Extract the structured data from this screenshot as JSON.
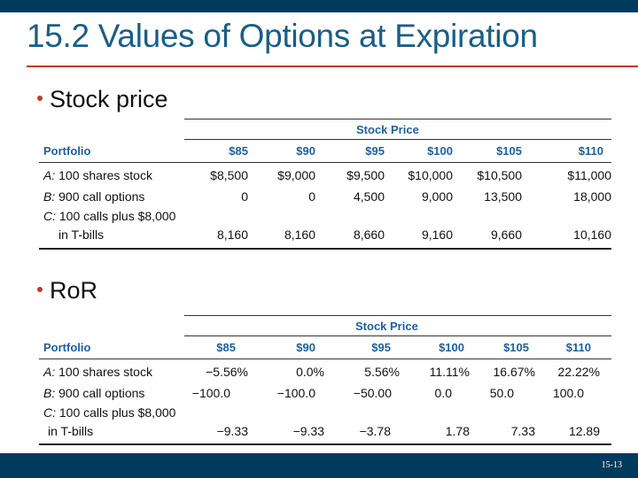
{
  "slide": {
    "title": "15.2 Values of Options at Expiration",
    "page_number": "15-13"
  },
  "sections": [
    {
      "bullet": "Stock price",
      "table": {
        "group_header": "Stock Price",
        "portfolio_header": "Portfolio",
        "prices": [
          "$85",
          "$90",
          "$95",
          "$100",
          "$105",
          "$110"
        ],
        "rows": [
          {
            "label_prefix": "A:",
            "label": "100 shares stock",
            "label2": "",
            "values": [
              "$8,500",
              "$9,000",
              "$9,500",
              "$10,000",
              "$10,500",
              "$11,000"
            ]
          },
          {
            "label_prefix": "B:",
            "label": "900 call options",
            "label2": "",
            "values": [
              "0",
              "0",
              "4,500",
              "9,000",
              "13,500",
              "18,000"
            ]
          },
          {
            "label_prefix": "C:",
            "label": "100 calls plus $8,000",
            "label2": "in T-bills",
            "values": [
              "8,160",
              "8,160",
              "8,660",
              "9,160",
              "9,660",
              "10,160"
            ]
          }
        ]
      }
    },
    {
      "bullet": "RoR",
      "table": {
        "group_header": "Stock Price",
        "portfolio_header": "Portfolio",
        "prices": [
          "$85",
          "$90",
          "$95",
          "$100",
          "$105",
          "$110"
        ],
        "rows": [
          {
            "label_prefix": "A:",
            "label": "100 shares stock",
            "label2": "",
            "values": [
              "−5.56%",
              "0.0%",
              "5.56%",
              "11.11%",
              "16.67%",
              "22.22%"
            ]
          },
          {
            "label_prefix": "B:",
            "label": "900 call options",
            "label2": "",
            "values": [
              "−100.0",
              "−100.0",
              "−50.00",
              "0.0",
              "50.0",
              "100.0"
            ]
          },
          {
            "label_prefix": "C:",
            "label": "100 calls plus $8,000",
            "label2": "in T-bills",
            "values": [
              "−9.33",
              "−9.33",
              "−3.78",
              "1.78",
              "7.33",
              "12.89"
            ]
          }
        ]
      }
    }
  ]
}
